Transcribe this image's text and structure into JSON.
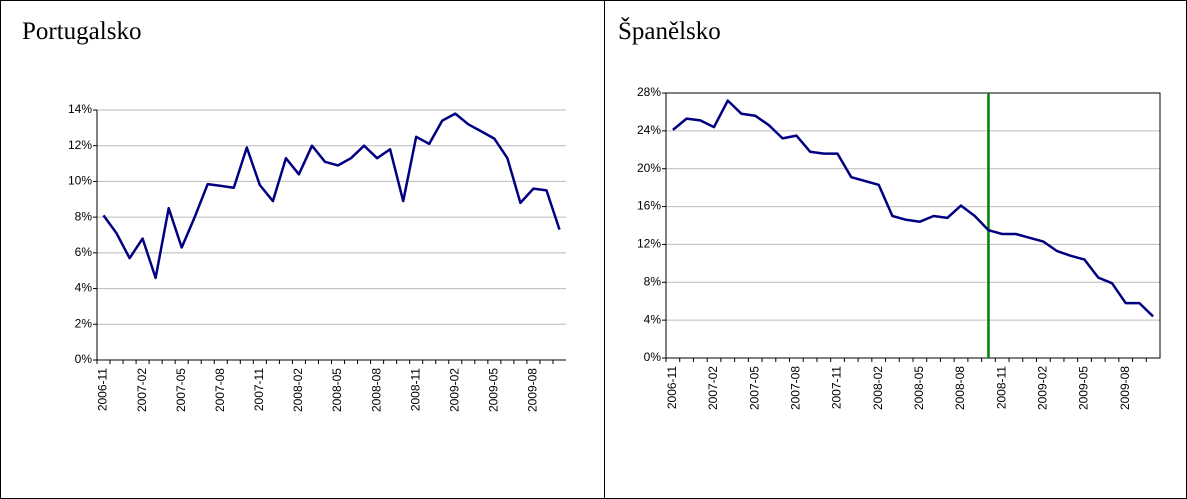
{
  "chart_data": [
    {
      "type": "line",
      "title": "Portugalsko",
      "categories": [
        "2006-11",
        null,
        null,
        "2007-02",
        null,
        null,
        "2007-05",
        null,
        null,
        "2007-08",
        null,
        null,
        "2007-11",
        null,
        null,
        "2008-02",
        null,
        null,
        "2008-05",
        null,
        null,
        "2008-08",
        null,
        null,
        "2008-11",
        null,
        null,
        "2009-02",
        null,
        null,
        "2009-05",
        null,
        null,
        "2009-08",
        null,
        null
      ],
      "series": [
        {
          "color": "#000080",
          "values": [
            8.1,
            7.1,
            5.7,
            6.8,
            4.6,
            8.5,
            6.3,
            8.0,
            9.85,
            9.75,
            9.65,
            11.9,
            9.8,
            8.9,
            11.3,
            10.4,
            12.0,
            11.1,
            10.9,
            11.3,
            12.0,
            11.3,
            11.8,
            8.9,
            12.5,
            12.1,
            13.4,
            13.8,
            13.2,
            12.8,
            12.4,
            11.3,
            8.8,
            9.6,
            9.5,
            7.3
          ]
        }
      ],
      "ylim": [
        0,
        14
      ],
      "yticks": [
        {
          "value": 0,
          "label": "0%"
        },
        {
          "value": 2,
          "label": "2%"
        },
        {
          "value": 4,
          "label": "4%"
        },
        {
          "value": 6,
          "label": "6%"
        },
        {
          "value": 8,
          "label": "8%"
        },
        {
          "value": 10,
          "label": "10%"
        },
        {
          "value": 12,
          "label": "12%"
        },
        {
          "value": 14,
          "label": "14%"
        }
      ],
      "grid": true,
      "frame": false
    },
    {
      "type": "line",
      "title": "Španělsko",
      "categories": [
        "2006-11",
        null,
        null,
        "2007-02",
        null,
        null,
        "2007-05",
        null,
        null,
        "2007-08",
        null,
        null,
        "2007-11",
        null,
        null,
        "2008-02",
        null,
        null,
        "2008-05",
        null,
        null,
        "2008-08",
        null,
        null,
        "2008-11",
        null,
        null,
        "2009-02",
        null,
        null,
        "2009-05",
        null,
        null,
        "2009-08",
        null,
        null
      ],
      "series": [
        {
          "color": "#000080",
          "values": [
            24.1,
            25.3,
            25.1,
            24.4,
            27.2,
            25.8,
            25.6,
            24.6,
            23.2,
            23.5,
            21.8,
            21.6,
            21.6,
            19.1,
            18.7,
            18.3,
            15.0,
            14.6,
            14.4,
            15.0,
            14.8,
            16.1,
            15.0,
            13.5,
            13.1,
            13.1,
            12.7,
            12.3,
            11.3,
            10.8,
            10.4,
            8.5,
            7.9,
            5.8,
            5.8,
            4.4
          ]
        }
      ],
      "ylim": [
        0,
        28
      ],
      "yticks": [
        {
          "value": 0,
          "label": "0%"
        },
        {
          "value": 4,
          "label": "4%"
        },
        {
          "value": 8,
          "label": "8%"
        },
        {
          "value": 12,
          "label": "12%"
        },
        {
          "value": 16,
          "label": "16%"
        },
        {
          "value": 20,
          "label": "20%"
        },
        {
          "value": 24,
          "label": "24%"
        },
        {
          "value": 28,
          "label": "28%"
        }
      ],
      "grid": true,
      "frame": true,
      "vline": {
        "at": 23,
        "color": "#008000"
      }
    }
  ]
}
